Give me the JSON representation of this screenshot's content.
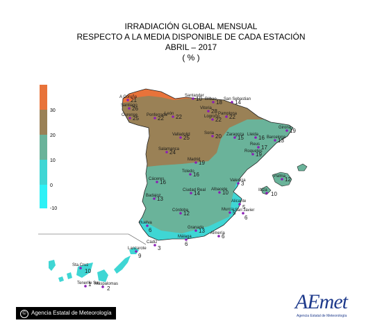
{
  "title": {
    "line1": "IRRADIACIÓN GLOBAL MENSUAL",
    "line2": "RESPECTO A LA MEDIA DISPONIBLE DE CADA ESTACIÓN",
    "line3": "ABRIL – 2017",
    "line4": "( % )"
  },
  "legend": {
    "ticks": [
      "30",
      "20",
      "10",
      "0",
      "-10"
    ],
    "colors": [
      "#e8733a",
      "#9a8156",
      "#6ab39a",
      "#3fd6d4",
      "#2ef1f6"
    ]
  },
  "stations": [
    {
      "name": "A Coruña",
      "value": "21"
    },
    {
      "name": "Santiago",
      "value": "26"
    },
    {
      "name": "Ourense",
      "value": "25"
    },
    {
      "name": "Ponferrada",
      "value": "22"
    },
    {
      "name": "León",
      "value": "22"
    },
    {
      "name": "Santander",
      "value": "10"
    },
    {
      "name": "Bilbao",
      "value": "18"
    },
    {
      "name": "San Sebastian",
      "value": "14"
    },
    {
      "name": "Vitoria",
      "value": "28"
    },
    {
      "name": "Logroño",
      "value": "22"
    },
    {
      "name": "Pamplona",
      "value": "22"
    },
    {
      "name": "Valladolid",
      "value": "25"
    },
    {
      "name": "Soria",
      "value": "20"
    },
    {
      "name": "Zaragoza",
      "value": "15"
    },
    {
      "name": "Lleida",
      "value": "16"
    },
    {
      "name": "Girona",
      "value": "19"
    },
    {
      "name": "Barcelona",
      "value": "13"
    },
    {
      "name": "Salamanca",
      "value": "24"
    },
    {
      "name": "Madrid",
      "value": "19"
    },
    {
      "name": "Reus",
      "value": "17"
    },
    {
      "name": "Roquetes",
      "value": "19"
    },
    {
      "name": "Toledo",
      "value": "16"
    },
    {
      "name": "Palma",
      "value": "12"
    },
    {
      "name": "Cáceres",
      "value": "16"
    },
    {
      "name": "Valencia",
      "value": "3"
    },
    {
      "name": "Ibiza",
      "value": "10"
    },
    {
      "name": "Badajoz",
      "value": "13"
    },
    {
      "name": "Ciudad Real",
      "value": "14"
    },
    {
      "name": "Albacete",
      "value": "10"
    },
    {
      "name": "Alicante",
      "value": "5"
    },
    {
      "name": "San Javier",
      "value": "6"
    },
    {
      "name": "Murcia",
      "value": "5"
    },
    {
      "name": "Córdoba",
      "value": "12"
    },
    {
      "name": "Huelva",
      "value": "6"
    },
    {
      "name": "Granada",
      "value": "13"
    },
    {
      "name": "Almería",
      "value": "6"
    },
    {
      "name": "Málaga",
      "value": "6"
    },
    {
      "name": "Cádiz",
      "value": "3"
    },
    {
      "name": "Lanzarote",
      "value": "9"
    },
    {
      "name": "Sta.Cruz",
      "value": "10"
    },
    {
      "name": "Tenerife Sur",
      "value": "1"
    },
    {
      "name": "Maspalomas",
      "value": "2"
    }
  ],
  "credit": "Agencia Estatal de Meteorología",
  "logo": {
    "word": "AEmet",
    "sub": "Agencia Estatal de Meteorología"
  }
}
